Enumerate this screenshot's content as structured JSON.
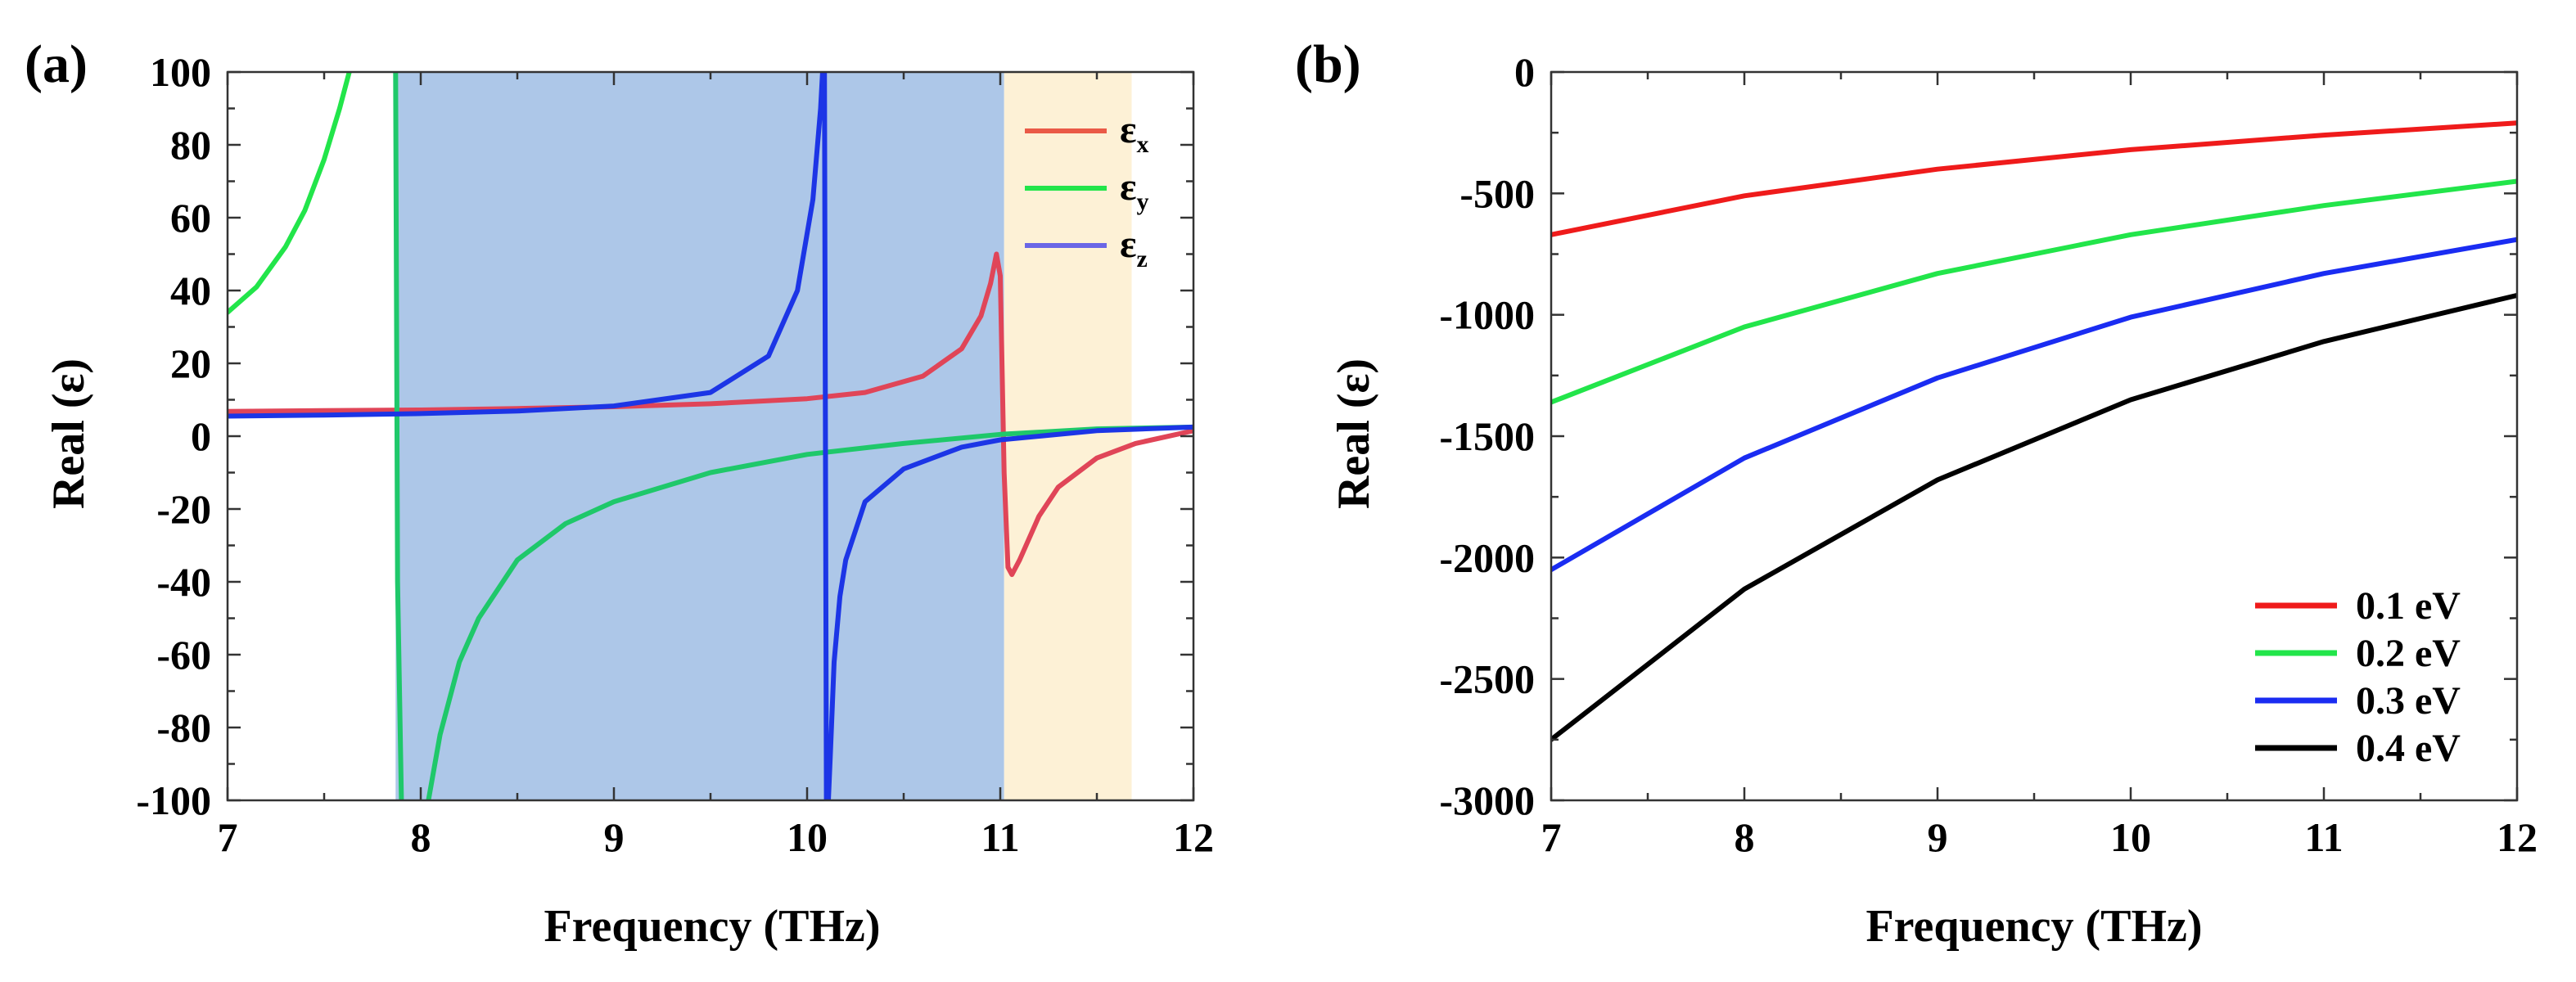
{
  "chart_data": [
    {
      "panel": "(a)",
      "type": "line",
      "xlabel": "Frequency (THz)",
      "ylabel": "Real (ε)",
      "xlim": [
        7,
        12
      ],
      "ylim": [
        -100,
        100
      ],
      "xticks": [
        7,
        8,
        9,
        10,
        11,
        12
      ],
      "yticks": [
        100,
        80,
        60,
        40,
        20,
        0,
        -20,
        -40,
        -60,
        -80,
        -100
      ],
      "shaded_regions": [
        {
          "x_range": [
            7.87,
            11.02
          ],
          "color": "#adc7e8"
        },
        {
          "x_range": [
            11.02,
            11.68
          ],
          "color": "#fdf1d6"
        }
      ],
      "legend": [
        {
          "symbol": "ε",
          "sub": "x",
          "color": "#ea5a47"
        },
        {
          "symbol": "ε",
          "sub": "y",
          "color": "#22e54a"
        },
        {
          "symbol": "ε",
          "sub": "z",
          "color": "#6a66e6"
        }
      ],
      "series": [
        {
          "name": "εx",
          "color": "#e04558",
          "x": [
            7.0,
            7.5,
            8.0,
            8.5,
            9.0,
            9.5,
            10.0,
            10.3,
            10.6,
            10.8,
            10.9,
            10.95,
            10.98,
            11.0,
            11.02,
            11.04,
            11.06,
            11.1,
            11.2,
            11.3,
            11.5,
            11.7,
            12.0
          ],
          "y": [
            6.8,
            7.0,
            7.2,
            7.6,
            8.1,
            8.9,
            10.3,
            12.0,
            16.5,
            24.0,
            33.0,
            42.0,
            50.0,
            44.0,
            -10.0,
            -36.0,
            -38.0,
            -34.0,
            -22.0,
            -14.0,
            -6.0,
            -2.0,
            1.5
          ]
        },
        {
          "name": "εy (left branch)",
          "color": "#22e54a",
          "x": [
            7.0,
            7.15,
            7.3,
            7.4,
            7.5,
            7.58,
            7.63
          ],
          "y": [
            34.0,
            41.0,
            52.0,
            62.0,
            76.0,
            90.0,
            100.0
          ]
        },
        {
          "name": "εy",
          "color": "#1fc86a",
          "x": [
            7.87,
            7.88,
            7.9
          ],
          "y": [
            100.0,
            -40.0,
            -100.0
          ]
        },
        {
          "name": "εy (right branch)",
          "color": "#1fc86a",
          "x": [
            8.04,
            8.1,
            8.2,
            8.3,
            8.5,
            8.75,
            9.0,
            9.5,
            10.0,
            10.5,
            11.0,
            11.5,
            12.0
          ],
          "y": [
            -100.0,
            -82.0,
            -62.0,
            -50.0,
            -34.0,
            -24.0,
            -18.0,
            -10.0,
            -5.0,
            -2.0,
            0.5,
            2.0,
            2.5
          ]
        },
        {
          "name": "εz",
          "color": "#1c35e6",
          "x": [
            7.0,
            7.5,
            8.0,
            8.5,
            9.0,
            9.5,
            9.8,
            9.95,
            10.03,
            10.07,
            10.08,
            10.09,
            10.1,
            10.11,
            10.12,
            10.14,
            10.17,
            10.2,
            10.3,
            10.5,
            10.8,
            11.0,
            11.5,
            12.0
          ],
          "y": [
            5.5,
            5.8,
            6.2,
            6.9,
            8.3,
            12.0,
            22.0,
            40.0,
            65.0,
            90.0,
            100.0,
            100.0,
            -100.0,
            -100.0,
            -88.0,
            -62.0,
            -44.0,
            -34.0,
            -18.0,
            -9.0,
            -3.0,
            -1.0,
            1.5,
            2.5
          ]
        }
      ]
    },
    {
      "panel": "(b)",
      "type": "line",
      "xlabel": "Frequency (THz)",
      "ylabel": "Real (ε)",
      "xlim": [
        7,
        12
      ],
      "ylim": [
        -3000,
        0
      ],
      "xticks": [
        7,
        8,
        9,
        10,
        11,
        12
      ],
      "yticks": [
        0,
        -500,
        -1000,
        -1500,
        -2000,
        -2500,
        -3000
      ],
      "legend": [
        {
          "label": "0.1 eV",
          "color": "#ef1b1b"
        },
        {
          "label": "0.2 eV",
          "color": "#22e54a"
        },
        {
          "label": "0.3 eV",
          "color": "#1a2cf2"
        },
        {
          "label": "0.4 eV",
          "color": "#000000"
        }
      ],
      "series": [
        {
          "name": "0.1 eV",
          "color": "#ef1b1b",
          "x": [
            7,
            8,
            9,
            10,
            11,
            12
          ],
          "y": [
            -670,
            -510,
            -400,
            -320,
            -260,
            -210
          ]
        },
        {
          "name": "0.2 eV",
          "color": "#22e54a",
          "x": [
            7,
            8,
            9,
            10,
            11,
            12
          ],
          "y": [
            -1360,
            -1050,
            -830,
            -670,
            -550,
            -450
          ]
        },
        {
          "name": "0.3 eV",
          "color": "#1a2cf2",
          "x": [
            7,
            8,
            9,
            10,
            11,
            12
          ],
          "y": [
            -2050,
            -1590,
            -1260,
            -1010,
            -830,
            -690
          ]
        },
        {
          "name": "0.4 eV",
          "color": "#000000",
          "x": [
            7,
            8,
            9,
            10,
            11,
            12
          ],
          "y": [
            -2750,
            -2130,
            -1680,
            -1350,
            -1110,
            -920
          ]
        }
      ]
    }
  ]
}
